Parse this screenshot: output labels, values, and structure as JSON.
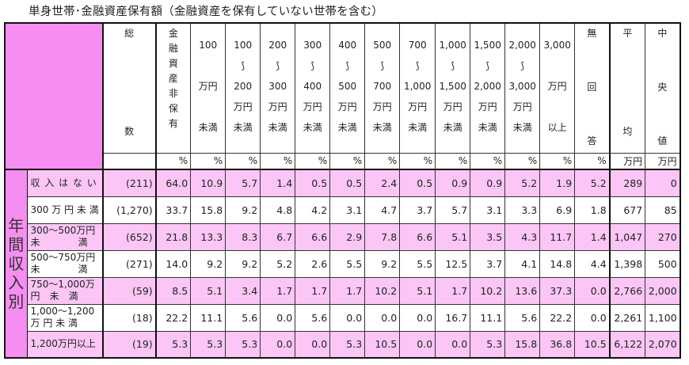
{
  "title": "単身世帯･金融資産保有額（金融資産を保有していない世帯を含む）",
  "colors": {
    "header_pink": "#f58ef0",
    "row_pink": "#fbc6f5",
    "row_white": "#ffffff",
    "border": "#111111"
  },
  "columns": [
    {
      "key": "total",
      "lines": [
        "総",
        "数"
      ],
      "unit": ""
    },
    {
      "key": "none",
      "lines": [
        "金",
        "融",
        "資",
        "産",
        "非",
        "保",
        "有"
      ],
      "unit": "%"
    },
    {
      "key": "lt100",
      "lines": [
        "100",
        "",
        "万円",
        "",
        "未満"
      ],
      "unit": "%"
    },
    {
      "key": "100_200",
      "lines": [
        "100",
        "⟆",
        "200",
        "万円",
        "未満"
      ],
      "unit": "%"
    },
    {
      "key": "200_300",
      "lines": [
        "200",
        "⟆",
        "300",
        "万円",
        "未満"
      ],
      "unit": "%"
    },
    {
      "key": "300_400",
      "lines": [
        "300",
        "⟆",
        "400",
        "万円",
        "未満"
      ],
      "unit": "%"
    },
    {
      "key": "400_500",
      "lines": [
        "400",
        "⟆",
        "500",
        "万円",
        "未満"
      ],
      "unit": "%"
    },
    {
      "key": "500_700",
      "lines": [
        "500",
        "⟆",
        "700",
        "万円",
        "未満"
      ],
      "unit": "%"
    },
    {
      "key": "700_1000",
      "lines": [
        "700",
        "⟆",
        "1,000",
        "万円",
        "未満"
      ],
      "unit": "%"
    },
    {
      "key": "1000_1500",
      "lines": [
        "1,000",
        "⟆",
        "1,500",
        "万円",
        "未満"
      ],
      "unit": "%"
    },
    {
      "key": "1500_2000",
      "lines": [
        "1,500",
        "⟆",
        "2,000",
        "万円",
        "未満"
      ],
      "unit": "%"
    },
    {
      "key": "2000_3000",
      "lines": [
        "2,000",
        "⟆",
        "3,000",
        "万円",
        "未満"
      ],
      "unit": "%"
    },
    {
      "key": "ge3000",
      "lines": [
        "3,000",
        "",
        "万円",
        "",
        "以上"
      ],
      "unit": "%"
    },
    {
      "key": "noanswer",
      "lines": [
        "無",
        "回",
        "答"
      ],
      "unit": "%"
    },
    {
      "key": "mean",
      "lines": [
        "平",
        "均"
      ],
      "unit": "万円"
    },
    {
      "key": "median",
      "lines": [
        "中",
        "央",
        "値"
      ],
      "unit": "万円"
    }
  ],
  "group_label": [
    "年",
    "間",
    "収",
    "入",
    "別"
  ],
  "rows": [
    {
      "label_lines": [
        "収 入 は な い"
      ],
      "count": "(211)",
      "values": [
        "64.0",
        "10.9",
        "5.7",
        "1.4",
        "0.5",
        "0.5",
        "2.4",
        "0.5",
        "0.9",
        "0.9",
        "5.2",
        "1.9",
        "5.2",
        "289",
        "0"
      ]
    },
    {
      "label_lines": [
        "300 万 円 未 満"
      ],
      "count": "(1,270)",
      "values": [
        "33.7",
        "15.8",
        "9.2",
        "4.8",
        "4.2",
        "3.1",
        "4.7",
        "3.7",
        "5.7",
        "3.1",
        "3.3",
        "6.9",
        "1.8",
        "677",
        "85"
      ]
    },
    {
      "label_lines": [
        "300～500万円",
        "未　　　　満"
      ],
      "count": "(652)",
      "values": [
        "21.8",
        "13.3",
        "8.3",
        "6.7",
        "6.6",
        "2.9",
        "7.8",
        "6.6",
        "5.1",
        "3.5",
        "4.3",
        "11.7",
        "1.4",
        "1,047",
        "270"
      ]
    },
    {
      "label_lines": [
        "500～750万円",
        "未　　　　満"
      ],
      "count": "(271)",
      "values": [
        "14.0",
        "9.2",
        "9.2",
        "5.2",
        "2.6",
        "5.5",
        "9.2",
        "5.5",
        "12.5",
        "3.7",
        "4.1",
        "14.8",
        "4.4",
        "1,398",
        "500"
      ]
    },
    {
      "label_lines": [
        "750～1,000万",
        "円　未　満"
      ],
      "count": "(59)",
      "values": [
        "8.5",
        "5.1",
        "3.4",
        "1.7",
        "1.7",
        "1.7",
        "10.2",
        "5.1",
        "1.7",
        "10.2",
        "13.6",
        "37.3",
        "0.0",
        "2,766",
        "2,000"
      ]
    },
    {
      "label_lines": [
        "1,000～1,200",
        "万 円 未 満"
      ],
      "count": "(18)",
      "values": [
        "22.2",
        "11.1",
        "5.6",
        "0.0",
        "5.6",
        "0.0",
        "0.0",
        "0.0",
        "16.7",
        "11.1",
        "5.6",
        "22.2",
        "0.0",
        "2,261",
        "1,100"
      ]
    },
    {
      "label_lines": [
        "1,200万円以上"
      ],
      "count": "(19)",
      "values": [
        "5.3",
        "5.3",
        "5.3",
        "0.0",
        "0.0",
        "5.3",
        "10.5",
        "0.0",
        "0.0",
        "5.3",
        "15.8",
        "36.8",
        "10.5",
        "6,122",
        "2,070"
      ]
    }
  ]
}
